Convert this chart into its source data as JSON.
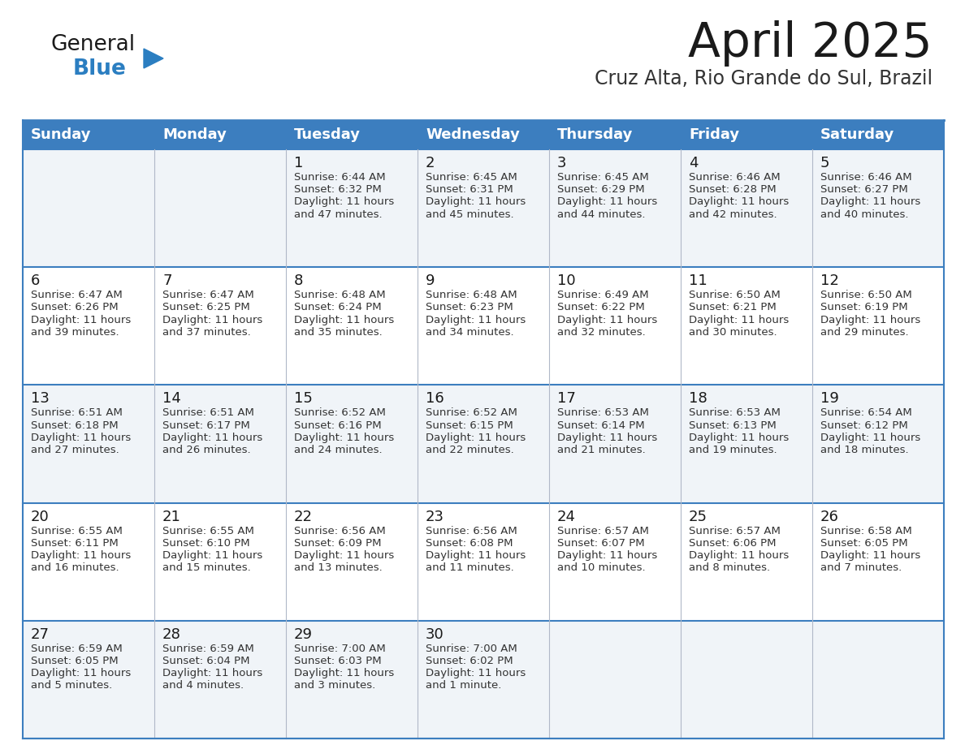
{
  "title": "April 2025",
  "subtitle": "Cruz Alta, Rio Grande do Sul, Brazil",
  "days_of_week": [
    "Sunday",
    "Monday",
    "Tuesday",
    "Wednesday",
    "Thursday",
    "Friday",
    "Saturday"
  ],
  "header_bg": "#3C7EBF",
  "header_text": "#FFFFFF",
  "row_bg_light": "#F0F4F8",
  "row_bg_white": "#FFFFFF",
  "cell_border": "#3C7EBF",
  "cell_border_light": "#AAAAAA",
  "title_color": "#1a1a1a",
  "subtitle_color": "#333333",
  "text_color": "#333333",
  "day_number_color": "#1a1a1a",
  "logo_general_color": "#1a1a1a",
  "logo_blue_color": "#2B7EC1",
  "calendar_data": [
    [
      {
        "day": null,
        "sunrise": null,
        "sunset": null,
        "daylight": null
      },
      {
        "day": null,
        "sunrise": null,
        "sunset": null,
        "daylight": null
      },
      {
        "day": 1,
        "sunrise": "6:44 AM",
        "sunset": "6:32 PM",
        "daylight": "11 hours and 47 minutes."
      },
      {
        "day": 2,
        "sunrise": "6:45 AM",
        "sunset": "6:31 PM",
        "daylight": "11 hours and 45 minutes."
      },
      {
        "day": 3,
        "sunrise": "6:45 AM",
        "sunset": "6:29 PM",
        "daylight": "11 hours and 44 minutes."
      },
      {
        "day": 4,
        "sunrise": "6:46 AM",
        "sunset": "6:28 PM",
        "daylight": "11 hours and 42 minutes."
      },
      {
        "day": 5,
        "sunrise": "6:46 AM",
        "sunset": "6:27 PM",
        "daylight": "11 hours and 40 minutes."
      }
    ],
    [
      {
        "day": 6,
        "sunrise": "6:47 AM",
        "sunset": "6:26 PM",
        "daylight": "11 hours and 39 minutes."
      },
      {
        "day": 7,
        "sunrise": "6:47 AM",
        "sunset": "6:25 PM",
        "daylight": "11 hours and 37 minutes."
      },
      {
        "day": 8,
        "sunrise": "6:48 AM",
        "sunset": "6:24 PM",
        "daylight": "11 hours and 35 minutes."
      },
      {
        "day": 9,
        "sunrise": "6:48 AM",
        "sunset": "6:23 PM",
        "daylight": "11 hours and 34 minutes."
      },
      {
        "day": 10,
        "sunrise": "6:49 AM",
        "sunset": "6:22 PM",
        "daylight": "11 hours and 32 minutes."
      },
      {
        "day": 11,
        "sunrise": "6:50 AM",
        "sunset": "6:21 PM",
        "daylight": "11 hours and 30 minutes."
      },
      {
        "day": 12,
        "sunrise": "6:50 AM",
        "sunset": "6:19 PM",
        "daylight": "11 hours and 29 minutes."
      }
    ],
    [
      {
        "day": 13,
        "sunrise": "6:51 AM",
        "sunset": "6:18 PM",
        "daylight": "11 hours and 27 minutes."
      },
      {
        "day": 14,
        "sunrise": "6:51 AM",
        "sunset": "6:17 PM",
        "daylight": "11 hours and 26 minutes."
      },
      {
        "day": 15,
        "sunrise": "6:52 AM",
        "sunset": "6:16 PM",
        "daylight": "11 hours and 24 minutes."
      },
      {
        "day": 16,
        "sunrise": "6:52 AM",
        "sunset": "6:15 PM",
        "daylight": "11 hours and 22 minutes."
      },
      {
        "day": 17,
        "sunrise": "6:53 AM",
        "sunset": "6:14 PM",
        "daylight": "11 hours and 21 minutes."
      },
      {
        "day": 18,
        "sunrise": "6:53 AM",
        "sunset": "6:13 PM",
        "daylight": "11 hours and 19 minutes."
      },
      {
        "day": 19,
        "sunrise": "6:54 AM",
        "sunset": "6:12 PM",
        "daylight": "11 hours and 18 minutes."
      }
    ],
    [
      {
        "day": 20,
        "sunrise": "6:55 AM",
        "sunset": "6:11 PM",
        "daylight": "11 hours and 16 minutes."
      },
      {
        "day": 21,
        "sunrise": "6:55 AM",
        "sunset": "6:10 PM",
        "daylight": "11 hours and 15 minutes."
      },
      {
        "day": 22,
        "sunrise": "6:56 AM",
        "sunset": "6:09 PM",
        "daylight": "11 hours and 13 minutes."
      },
      {
        "day": 23,
        "sunrise": "6:56 AM",
        "sunset": "6:08 PM",
        "daylight": "11 hours and 11 minutes."
      },
      {
        "day": 24,
        "sunrise": "6:57 AM",
        "sunset": "6:07 PM",
        "daylight": "11 hours and 10 minutes."
      },
      {
        "day": 25,
        "sunrise": "6:57 AM",
        "sunset": "6:06 PM",
        "daylight": "11 hours and 8 minutes."
      },
      {
        "day": 26,
        "sunrise": "6:58 AM",
        "sunset": "6:05 PM",
        "daylight": "11 hours and 7 minutes."
      }
    ],
    [
      {
        "day": 27,
        "sunrise": "6:59 AM",
        "sunset": "6:05 PM",
        "daylight": "11 hours and 5 minutes."
      },
      {
        "day": 28,
        "sunrise": "6:59 AM",
        "sunset": "6:04 PM",
        "daylight": "11 hours and 4 minutes."
      },
      {
        "day": 29,
        "sunrise": "7:00 AM",
        "sunset": "6:03 PM",
        "daylight": "11 hours and 3 minutes."
      },
      {
        "day": 30,
        "sunrise": "7:00 AM",
        "sunset": "6:02 PM",
        "daylight": "11 hours and 1 minute."
      },
      {
        "day": null,
        "sunrise": null,
        "sunset": null,
        "daylight": null
      },
      {
        "day": null,
        "sunrise": null,
        "sunset": null,
        "daylight": null
      },
      {
        "day": null,
        "sunrise": null,
        "sunset": null,
        "daylight": null
      }
    ]
  ]
}
